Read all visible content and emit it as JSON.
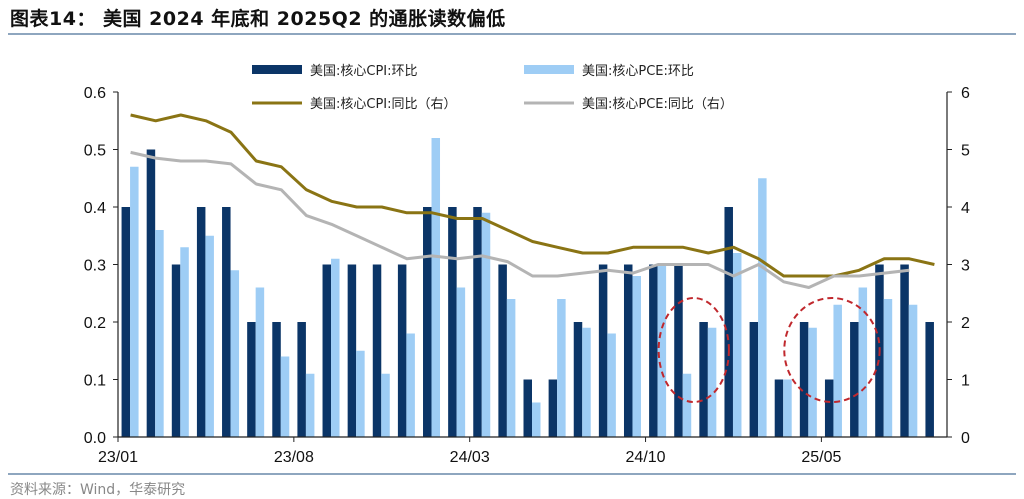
{
  "title": "图表14： 美国 2024 年底和 2025Q2 的通胀读数偏低",
  "source": "资料来源：Wind，华泰研究",
  "colors": {
    "cpi_mom": "#0b3567",
    "pce_mom": "#9ecdf5",
    "cpi_yoy": "#8a7414",
    "pce_yoy": "#b4b4b4",
    "annotation": "#c0282d",
    "rule": "#8ea6bf"
  },
  "chart_data": {
    "type": "bar+line",
    "categories": [
      "23/01",
      "23/02",
      "23/03",
      "23/04",
      "23/05",
      "23/06",
      "23/07",
      "23/08",
      "23/09",
      "23/10",
      "23/11",
      "23/12",
      "24/01",
      "24/02",
      "24/03",
      "24/04",
      "24/05",
      "24/06",
      "24/07",
      "24/08",
      "24/09",
      "24/10",
      "24/11",
      "24/12",
      "25/01",
      "25/02",
      "25/03",
      "25/04",
      "25/05",
      "25/06",
      "25/07",
      "25/08",
      "25/09"
    ],
    "x_tick_labels": [
      "23/01",
      "23/08",
      "24/03",
      "24/10",
      "25/05"
    ],
    "y_left": {
      "range": [
        0,
        0.6
      ],
      "ticks": [
        "0.0",
        "0.1",
        "0.2",
        "0.3",
        "0.4",
        "0.5",
        "0.6"
      ]
    },
    "y_right": {
      "range": [
        0,
        6
      ],
      "ticks": [
        "0",
        "1",
        "2",
        "3",
        "4",
        "5",
        "6"
      ]
    },
    "legend_placement": "top",
    "grid": false,
    "series": [
      {
        "name": "美国:核心CPI:环比",
        "type": "bar",
        "axis": "left",
        "values": [
          0.4,
          0.5,
          0.3,
          0.4,
          0.4,
          0.2,
          0.2,
          0.2,
          0.3,
          0.3,
          0.3,
          0.3,
          0.4,
          0.4,
          0.4,
          0.3,
          0.1,
          0.1,
          0.2,
          0.3,
          0.3,
          0.3,
          0.3,
          0.2,
          0.4,
          0.2,
          0.1,
          0.2,
          0.1,
          0.2,
          0.3,
          0.3,
          0.2
        ]
      },
      {
        "name": "美国:核心PCE:环比",
        "type": "bar",
        "axis": "left",
        "values": [
          0.47,
          0.36,
          0.33,
          0.35,
          0.29,
          0.26,
          0.14,
          0.11,
          0.31,
          0.15,
          0.11,
          0.18,
          0.52,
          0.26,
          0.39,
          0.24,
          0.06,
          0.24,
          0.19,
          0.18,
          0.28,
          0.3,
          0.11,
          0.19,
          0.32,
          0.45,
          0.1,
          0.19,
          0.23,
          0.26,
          0.24,
          0.23,
          null
        ]
      },
      {
        "name": "美国:核心CPI:同比（右）",
        "type": "line",
        "axis": "right",
        "values": [
          5.6,
          5.5,
          5.6,
          5.5,
          5.3,
          4.8,
          4.7,
          4.3,
          4.1,
          4.0,
          4.0,
          3.9,
          3.9,
          3.8,
          3.8,
          3.6,
          3.4,
          3.3,
          3.2,
          3.2,
          3.3,
          3.3,
          3.3,
          3.2,
          3.3,
          3.1,
          2.8,
          2.8,
          2.8,
          2.9,
          3.1,
          3.1,
          3.0
        ]
      },
      {
        "name": "美国:核心PCE:同比（右）",
        "type": "line",
        "axis": "right",
        "values": [
          4.95,
          4.85,
          4.8,
          4.8,
          4.75,
          4.4,
          4.3,
          3.85,
          3.7,
          3.5,
          3.3,
          3.1,
          3.15,
          3.1,
          3.15,
          3.05,
          2.8,
          2.8,
          2.85,
          2.9,
          2.85,
          3.0,
          3.0,
          3.0,
          2.8,
          3.0,
          2.7,
          2.6,
          2.8,
          2.8,
          2.85,
          2.9,
          null
        ]
      }
    ],
    "annotations": [
      {
        "type": "dashed-ellipse",
        "around": [
          "24/11",
          "24/12"
        ]
      },
      {
        "type": "dashed-ellipse",
        "around": [
          "25/04",
          "25/05",
          "25/06"
        ]
      }
    ]
  }
}
